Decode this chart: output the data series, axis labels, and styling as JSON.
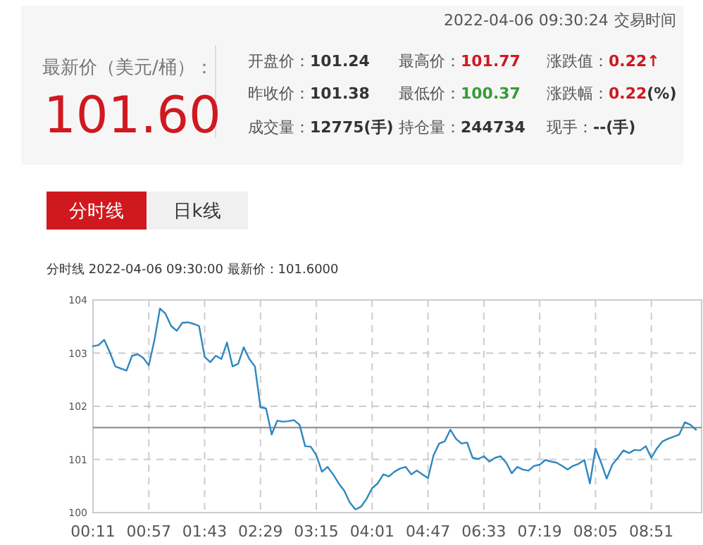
{
  "chart_data": {
    "type": "line",
    "title": "分时线 2022-04-06 09:30:00 最新价：101.6000",
    "annotations": [
      "2022-04-06 09:30:24",
      "交易时间",
      "最新价（美元/桶）：",
      "101.60",
      "开盘价：",
      "101.24",
      "最高价：",
      "101.77",
      "涨跌值：",
      "0.22↑",
      "昨收价：",
      "101.38",
      "最低价：",
      "100.37",
      "涨跌幅：",
      "0.22",
      "(%)",
      "成交量：",
      "12775(手)",
      "持仓量：",
      "244734",
      "现手：",
      "--(手)",
      "分时线",
      "日k线"
    ],
    "categories": [
      "00:11",
      null,
      null,
      null,
      null,
      null,
      null,
      null,
      null,
      null,
      "00:57",
      null,
      null,
      null,
      null,
      null,
      null,
      null,
      null,
      null,
      "01:43",
      null,
      null,
      null,
      null,
      null,
      null,
      null,
      null,
      null,
      "02:29",
      null,
      null,
      null,
      null,
      null,
      null,
      null,
      null,
      null,
      "03:15",
      null,
      null,
      null,
      null,
      null,
      null,
      null,
      null,
      null,
      "04:01",
      null,
      null,
      null,
      null,
      null,
      null,
      null,
      null,
      null,
      "04:47",
      null,
      null,
      null,
      null,
      null,
      null,
      null,
      null,
      null,
      "06:33",
      null,
      null,
      null,
      null,
      null,
      null,
      null,
      null,
      null,
      "07:19",
      null,
      null,
      null,
      null,
      null,
      null,
      null,
      null,
      null,
      "08:05",
      null,
      null,
      null,
      null,
      null,
      null,
      null,
      null,
      null,
      "08:51",
      null,
      null,
      null,
      null,
      null,
      null,
      null,
      null
    ],
    "values": [
      103.13,
      103.15,
      103.25,
      103.02,
      102.75,
      102.71,
      102.67,
      102.95,
      102.98,
      102.91,
      102.77,
      103.24,
      103.84,
      103.74,
      103.51,
      103.42,
      103.57,
      103.58,
      103.55,
      103.51,
      102.93,
      102.83,
      102.95,
      102.89,
      103.2,
      102.75,
      102.8,
      103.11,
      102.89,
      102.75,
      101.98,
      101.96,
      101.47,
      101.73,
      101.71,
      101.72,
      101.74,
      101.65,
      101.25,
      101.24,
      101.08,
      100.77,
      100.86,
      100.72,
      100.55,
      100.41,
      100.19,
      100.06,
      100.11,
      100.26,
      100.46,
      100.55,
      100.72,
      100.68,
      100.77,
      100.83,
      100.86,
      100.72,
      100.79,
      100.72,
      100.65,
      101.08,
      101.3,
      101.34,
      101.56,
      101.39,
      101.3,
      101.32,
      101.03,
      101.01,
      101.06,
      100.96,
      101.03,
      101.06,
      100.94,
      100.74,
      100.86,
      100.81,
      100.79,
      100.88,
      100.9,
      100.99,
      100.96,
      100.94,
      100.88,
      100.81,
      100.88,
      100.92,
      100.99,
      100.55,
      101.21,
      100.94,
      100.64,
      100.9,
      101.03,
      101.17,
      101.12,
      101.18,
      101.17,
      101.25,
      101.03,
      101.21,
      101.34,
      101.39,
      101.43,
      101.47,
      101.7,
      101.65,
      101.56
    ],
    "color": "#2f87c0",
    "ylim": [
      100,
      104
    ],
    "yticks": [
      100,
      101,
      102,
      103,
      104
    ],
    "ref_lines": [
      {
        "axis": "y",
        "value": 101.6,
        "color": "#888888"
      }
    ],
    "grid": true
  }
}
